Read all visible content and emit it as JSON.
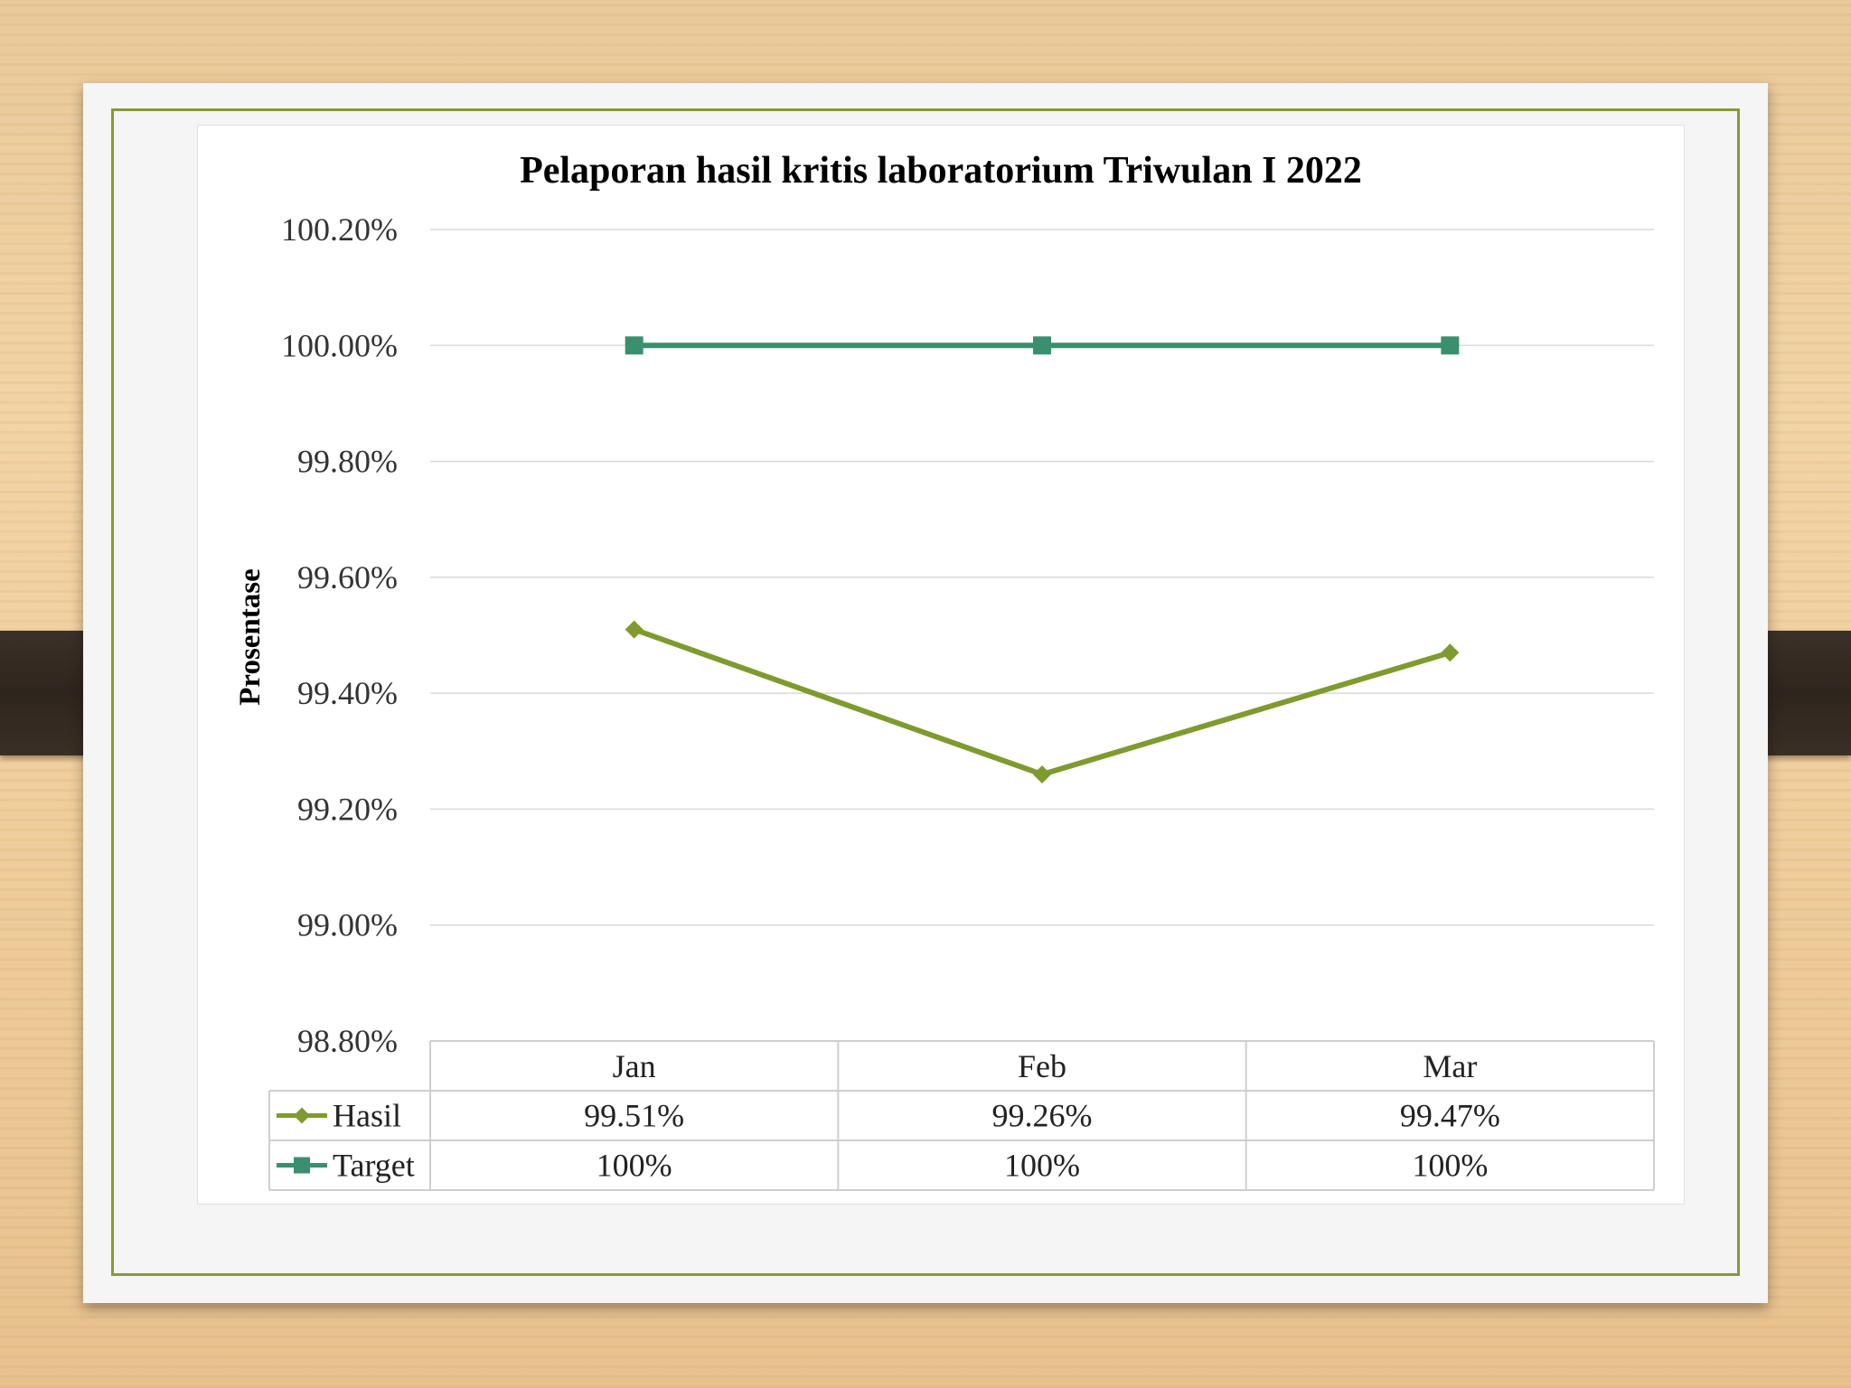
{
  "chart_data": {
    "type": "line",
    "title": "Pelaporan hasil kritis laboratorium Triwulan I 2022",
    "ylabel": "Prosentase",
    "xlabel": "",
    "categories": [
      "Jan",
      "Feb",
      "Mar"
    ],
    "ylim": [
      98.8,
      100.2
    ],
    "yticks": [
      "100.20%",
      "100.00%",
      "99.80%",
      "99.60%",
      "99.40%",
      "99.20%",
      "99.00%",
      "98.80%"
    ],
    "grid": true,
    "legend": "data-table",
    "series": [
      {
        "name": "Hasil",
        "values": [
          99.51,
          99.26,
          99.47
        ],
        "labels": [
          "99.51%",
          "99.26%",
          "99.47%"
        ],
        "color": "#7f9a2e",
        "marker": "diamond"
      },
      {
        "name": "Target",
        "values": [
          100,
          100,
          100
        ],
        "labels": [
          "100%",
          "100%",
          "100%"
        ],
        "color": "#3a8f6e",
        "marker": "square"
      }
    ]
  }
}
